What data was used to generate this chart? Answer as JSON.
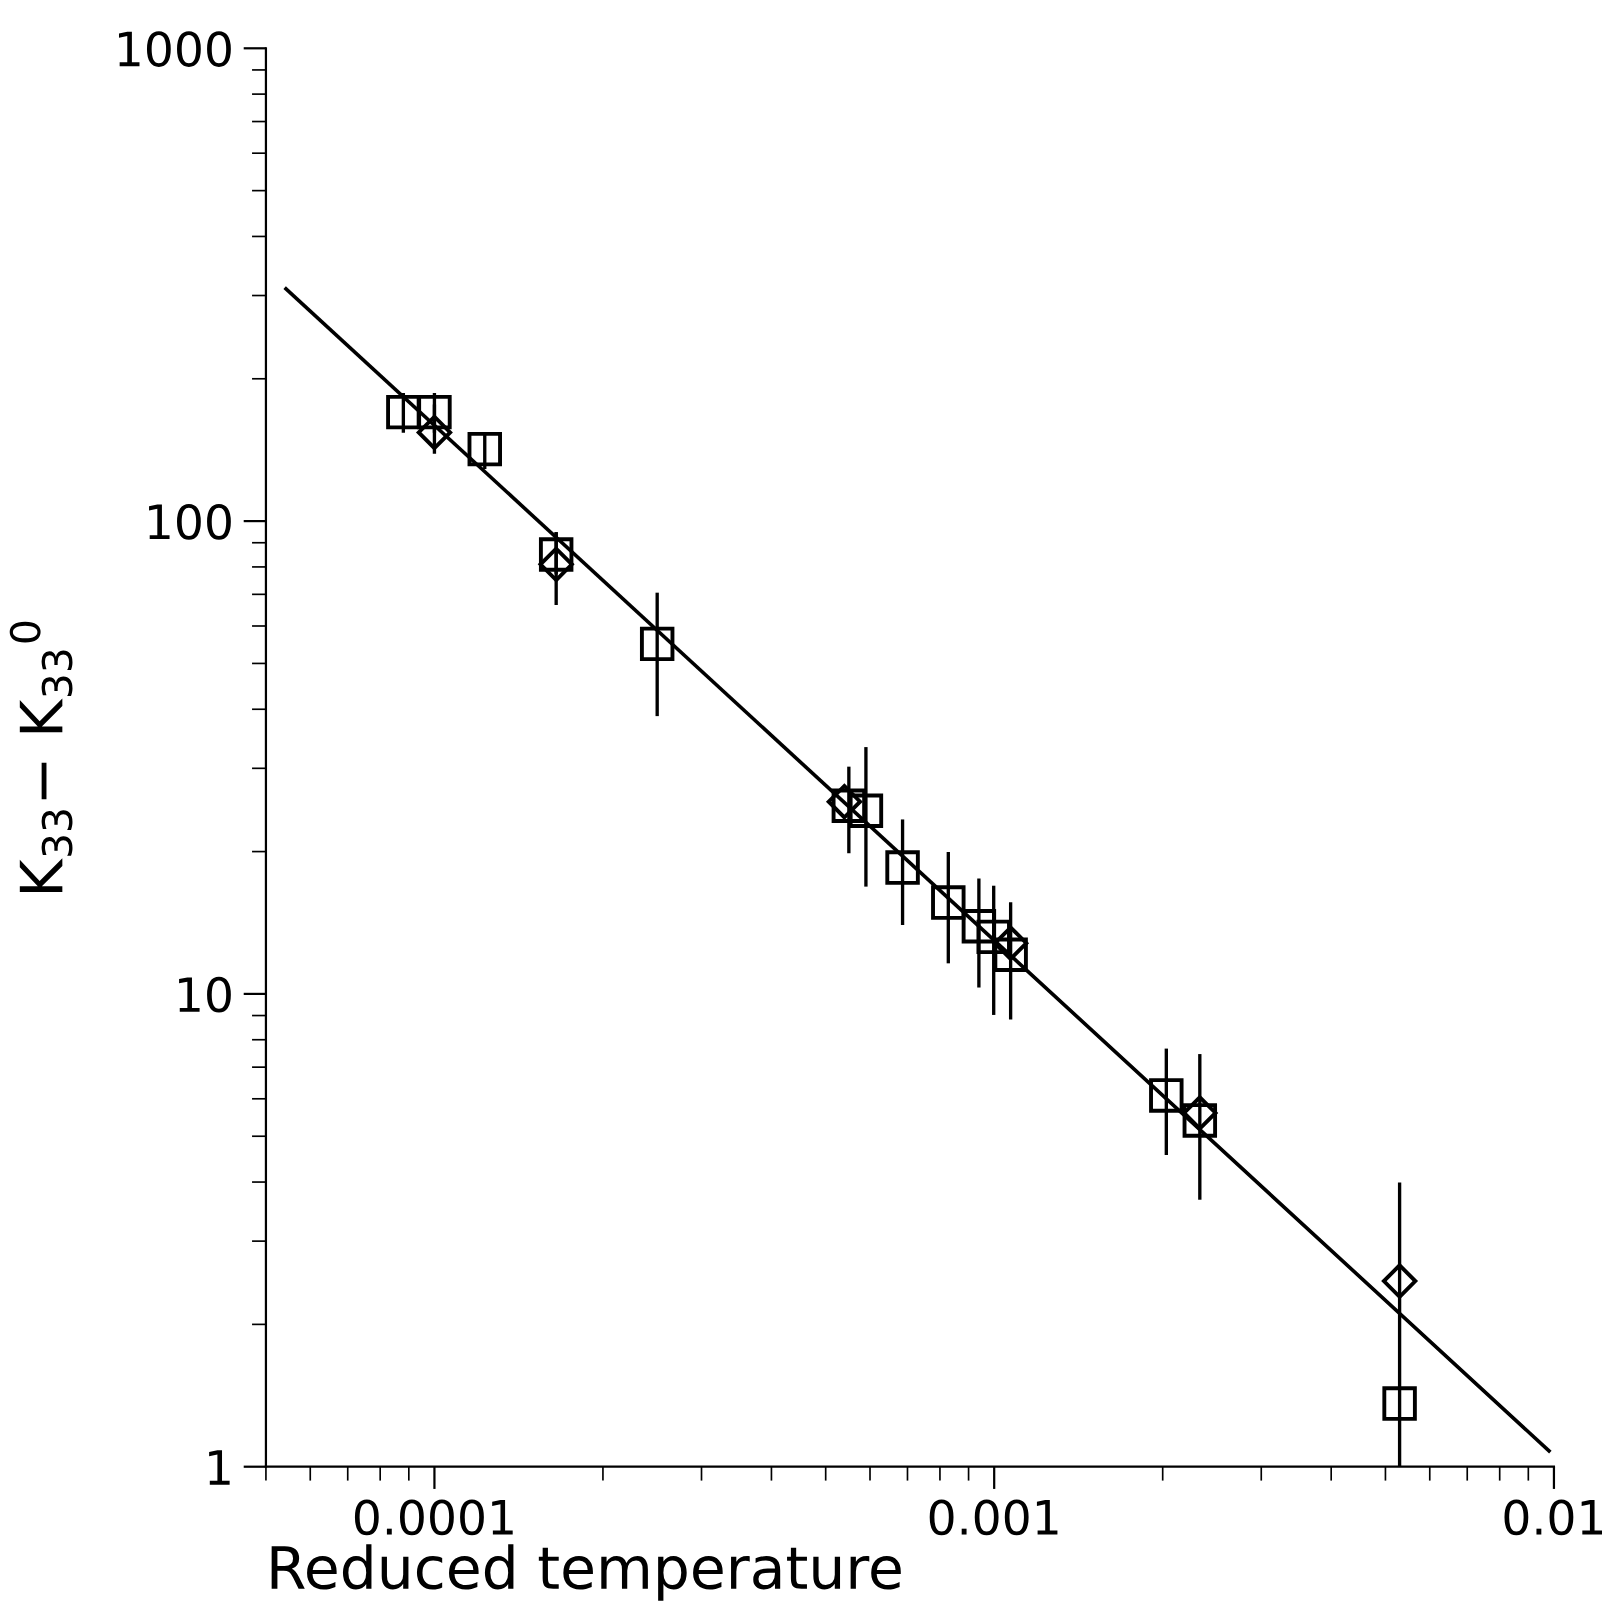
{
  "chart_data": {
    "type": "scatter",
    "xlabel": "Reduced temperature",
    "ylabel": "K$_{33}$− K$_{33}$$^{0}$",
    "log": "xy",
    "xlim": [
      5e-05,
      0.01
    ],
    "ylim": [
      1,
      1000
    ],
    "xticks": [
      0.0001,
      0.001,
      0.01
    ],
    "yticks": [
      1,
      10,
      100,
      1000
    ],
    "grid": false,
    "legend": false,
    "series": [
      {
        "marker": "square",
        "color": "#000000",
        "x": [
          8.8e-05,
          0.0001,
          0.000123,
          0.000165,
          0.00025,
          0.00055,
          0.00059,
          0.000686,
          0.000828,
          0.000939,
          0.000998,
          0.00107,
          0.00203,
          0.00233,
          0.0053
        ],
        "values": [
          170,
          170,
          142,
          85,
          55,
          25,
          24.4,
          18.5,
          15.6,
          13.9,
          13.2,
          12.1,
          6.1,
          5.4,
          1.36
        ],
        "errors": [
          [
            155,
            185
          ],
          [
            155,
            185
          ],
          [
            130,
            153
          ],
          [
            78,
            94
          ],
          [
            39,
            70
          ],
          [
            20,
            30
          ],
          [
            17,
            33
          ],
          [
            14.1,
            23.2
          ],
          [
            11.7,
            19.8
          ],
          [
            10.4,
            17.4
          ],
          [
            9.1,
            16.8
          ],
          [
            8.9,
            15.5
          ],
          [
            4.6,
            7.6
          ],
          [
            3.7,
            7.4
          ],
          null
        ]
      },
      {
        "marker": "diamond",
        "color": "#000000",
        "x": [
          0.0001,
          0.000165,
          0.00054,
          0.00107,
          0.00233,
          0.0053
        ],
        "values": [
          154,
          81,
          25.5,
          12.8,
          5.6,
          2.47
        ],
        "errors": [
          [
            140,
            175
          ],
          [
            67,
            94
          ],
          null,
          null,
          null,
          [
            1,
            3.96
          ]
        ]
      },
      {
        "type": "line",
        "color": "#000000",
        "x": [
          5.43e-05,
          0.0098
        ],
        "values": [
          310,
          1.08
        ]
      }
    ]
  }
}
